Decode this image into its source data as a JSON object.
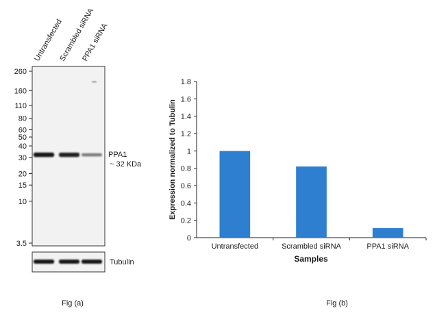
{
  "panel_a": {
    "lane_labels": [
      "Untransfected",
      "Scrambled siRNA",
      "PPA1 siRNA"
    ],
    "markers": [
      {
        "label": "260",
        "kda": 260
      },
      {
        "label": "160",
        "kda": 160
      },
      {
        "label": "110",
        "kda": 110
      },
      {
        "label": "80",
        "kda": 80
      },
      {
        "label": "60",
        "kda": 60
      },
      {
        "label": "50",
        "kda": 50
      },
      {
        "label": "40",
        "kda": 40
      },
      {
        "label": "30",
        "kda": 30
      },
      {
        "label": "20",
        "kda": 20
      },
      {
        "label": "15",
        "kda": 15
      },
      {
        "label": "10",
        "kda": 10
      },
      {
        "label": "3.5",
        "kda": 3.5
      }
    ],
    "target_label": "PPA1",
    "target_size_label": "~ 32 KDa",
    "target_kda": 32,
    "target_band_intensity": [
      1.0,
      0.92,
      0.38
    ],
    "loading_control_label": "Tubulin",
    "loading_band_intensity": [
      1.0,
      1.0,
      1.0
    ],
    "caption": "Fig (a)"
  },
  "panel_b": {
    "caption": "Fig (b)"
  },
  "chart_data": {
    "type": "bar",
    "categories": [
      "Untransfected",
      "Scrambled siRNA",
      "PPA1 siRNA"
    ],
    "values": [
      1.0,
      0.82,
      0.11
    ],
    "title": "",
    "xlabel": "Samples",
    "ylabel": "Expression  normalized to Tubulin",
    "ylim": [
      0,
      1.8
    ],
    "yticks": [
      0,
      0.2,
      0.4,
      0.6,
      0.8,
      1,
      1.2,
      1.4,
      1.6,
      1.8
    ],
    "ytick_labels": [
      "0",
      "0.2",
      "0.4",
      "0.6",
      "0.8",
      "1",
      "1.2",
      "1.4",
      "1.6",
      "1.8"
    ],
    "grid": false,
    "legend": "none",
    "bar_color": "#2e7fd0"
  }
}
